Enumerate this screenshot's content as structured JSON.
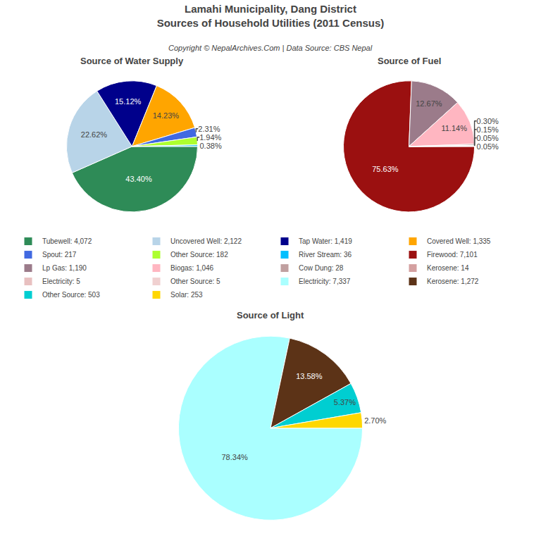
{
  "title": "Lamahi Municipality, Dang District",
  "subtitle": "Sources of Household Utilities (2011 Census)",
  "annotations": [
    "Copyright © NepalArchives.Com | Data Source: CBS Nepal"
  ],
  "legend": "middle",
  "chart_data": [
    {
      "type": "pie",
      "title": "Source of Water Supply",
      "categories": [
        "Tubewell: 4,072",
        "Uncovered Well: 2,122",
        "Tap Water: 1,419",
        "Covered Well: 1,335",
        "Spout: 217",
        "Other Source: 182",
        "River Stream: 36"
      ],
      "values": [
        43.4,
        22.62,
        15.12,
        14.23,
        2.31,
        1.94,
        0.38
      ],
      "value_labels": [
        "43.40%",
        "22.62%",
        "15.12%",
        "14.23%",
        "2.31%",
        "1.94%",
        "0.38%"
      ],
      "data_labels": true,
      "colors": [
        "#2E8B57",
        "#B8D4E8",
        "#00008B",
        "#FFA500",
        "#4169E1",
        "#ADFF2F",
        "#00BFFF"
      ]
    },
    {
      "type": "pie",
      "title": "Source of Fuel",
      "categories": [
        "Firewood: 7,101",
        "Lp Gas: 1,190",
        "Biogas: 1,046",
        "Cow Dung: 28",
        "Kerosene: 14",
        "Electricity: 5",
        "Other Source: 5"
      ],
      "values": [
        75.63,
        12.67,
        11.14,
        0.3,
        0.15,
        0.05,
        0.05
      ],
      "value_labels": [
        "75.63%",
        "12.67%",
        "11.14%",
        "0.30%",
        "0.15%",
        "0.05%",
        "0.05%"
      ],
      "data_labels": true,
      "colors": [
        "#9B1010",
        "#9B7B8A",
        "#FFB6C1",
        "#C0A0A0",
        "#D4A0A0",
        "#E8C0C0",
        "#F0D0D0"
      ]
    },
    {
      "type": "pie",
      "title": "Source of Light",
      "categories": [
        "Electricity: 7,337",
        "Kerosene: 1,272",
        "Other Source: 503",
        "Solar: 253"
      ],
      "values": [
        78.34,
        13.58,
        5.37,
        2.7
      ],
      "value_labels": [
        "78.34%",
        "13.58%",
        "5.37%",
        "2.70%"
      ],
      "data_labels": true,
      "colors": [
        "#AAFFFF",
        "#5C3317",
        "#00CED1",
        "#FFD700"
      ]
    }
  ]
}
